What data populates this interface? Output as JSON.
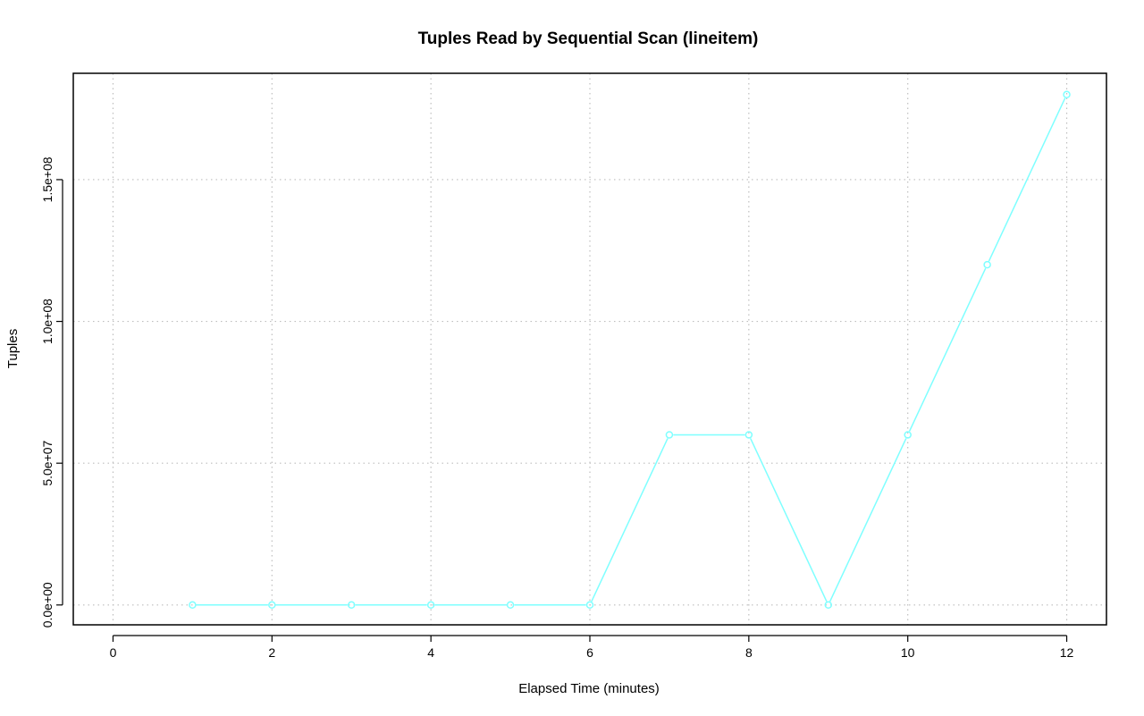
{
  "chart_data": {
    "type": "line",
    "title": "Tuples Read by Sequential Scan (lineitem)",
    "xlabel": "Elapsed Time (minutes)",
    "ylabel": "Tuples",
    "x": [
      1,
      2,
      3,
      4,
      5,
      6,
      7,
      8,
      9,
      10,
      11,
      12
    ],
    "series": [
      {
        "values": [
          0,
          0,
          0,
          0,
          0,
          0,
          60000000,
          60000000,
          0,
          60000000,
          120000000,
          180000000
        ],
        "color": "#7fffff",
        "marker": "open-circle"
      }
    ],
    "xlim": [
      -0.5,
      12.5
    ],
    "ylim": [
      -7000000,
      187500000
    ],
    "x_ticks": [
      0,
      2,
      4,
      6,
      8,
      10,
      12
    ],
    "x_tick_labels": [
      "0",
      "2",
      "4",
      "6",
      "8",
      "10",
      "12"
    ],
    "y_ticks": [
      0,
      50000000,
      100000000,
      150000000
    ],
    "y_tick_labels": [
      "0.0e+00",
      "5.0e+07",
      "1.0e+08",
      "1.5e+08"
    ],
    "grid": true,
    "grid_style": "dotted"
  }
}
